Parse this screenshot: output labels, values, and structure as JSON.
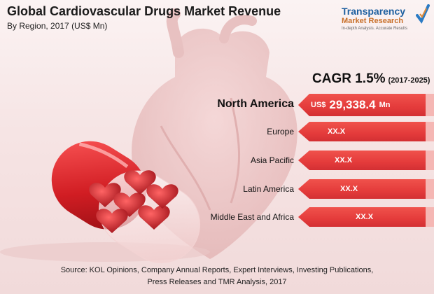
{
  "header": {
    "title": "Global Cardiovascular Drugs Market Revenue",
    "subtitle": "By Region, 2017 (US$ Mn)"
  },
  "logo": {
    "line1": "Transparency",
    "line2": "Market Research",
    "tagline": "In-depth Analysis. Accurate Results"
  },
  "cagr": {
    "value": "CAGR 1.5%",
    "period": "(2017-2025)"
  },
  "chart_data": {
    "type": "bar",
    "title": "Global Cardiovascular Drugs Market Revenue",
    "subtitle": "By Region, 2017 (US$ Mn)",
    "categories": [
      "North America",
      "Europe",
      "Asia Pacific",
      "Latin America",
      "Middle East and Africa"
    ],
    "series": [
      {
        "values": [
          29338.4,
          null,
          null,
          null,
          null
        ]
      }
    ],
    "display_values": [
      "29,338.4",
      "XX.X",
      "XX.X",
      "XX.X",
      "XX.X"
    ],
    "currency_prefix": "US$",
    "unit": "Mn",
    "annotations": [
      "CAGR 1.5% (2017-2025)"
    ]
  },
  "source": {
    "line1": "Source: KOL Opinions, Company Annual Reports, Expert Interviews, Investing Publications,",
    "line2": "Press Releases and TMR Analysis, 2017"
  }
}
